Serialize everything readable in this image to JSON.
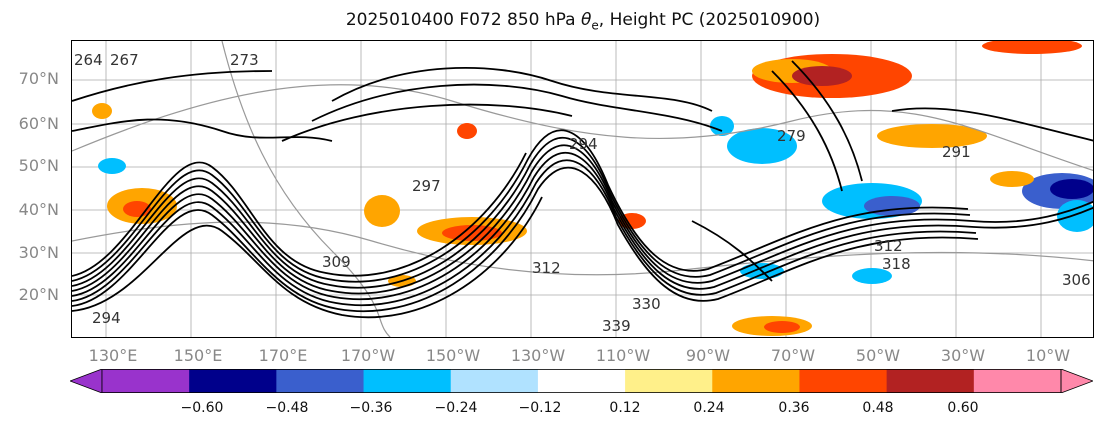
{
  "title": {
    "prefix": "2025010400 F072 850 hPa ",
    "theta_symbol": "θ",
    "theta_sub": "e",
    "suffix": ", Height PC (2025010900)"
  },
  "lat_labels": [
    "70°N",
    "60°N",
    "50°N",
    "40°N",
    "30°N",
    "20°N"
  ],
  "lon_labels": [
    "130°E",
    "150°E",
    "170°E",
    "170°W",
    "150°W",
    "130°W",
    "110°W",
    "90°W",
    "70°W",
    "50°W",
    "30°W",
    "10°W"
  ],
  "colorbar": {
    "ticks": [
      "−0.60",
      "−0.48",
      "−0.36",
      "−0.24",
      "−0.12",
      "0.12",
      "0.24",
      "0.36",
      "0.48",
      "0.60"
    ],
    "colors": {
      "under": "#9933cc",
      "bins": [
        "#9933cc",
        "#00008b",
        "#3a5fcd",
        "#00bfff",
        "#b0e2ff",
        "#ffffff",
        "#fff08a",
        "#ffa500",
        "#ff4500",
        "#b22222",
        "#ff88aa"
      ],
      "over": "#ff88aa"
    }
  },
  "contour_labels": [
    "264",
    "267",
    "273",
    "294",
    "297",
    "309",
    "312",
    "318",
    "339",
    "330",
    "306",
    "294",
    "279",
    "291",
    "312"
  ]
}
